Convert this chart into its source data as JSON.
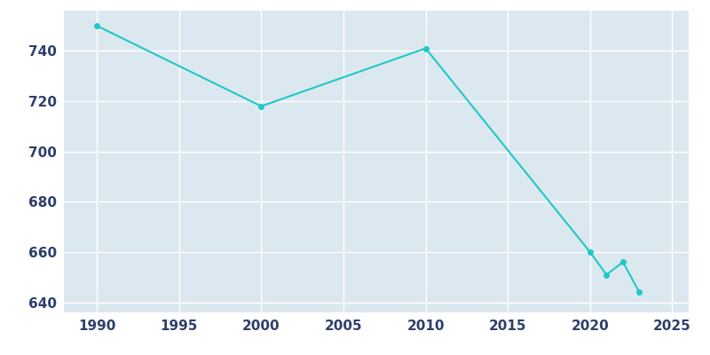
{
  "years": [
    1990,
    2000,
    2010,
    2020,
    2021,
    2022,
    2023
  ],
  "population": [
    750,
    718,
    741,
    660,
    651,
    656,
    644
  ],
  "line_color": "#20c8c8",
  "marker_color": "#20c8c8",
  "plot_facecolor": "#dce8f0",
  "figure_facecolor": "#ffffff",
  "grid_color": "#ffffff",
  "tick_color": "#2e3f6e",
  "xlim": [
    1988,
    2026
  ],
  "ylim": [
    636,
    756
  ],
  "xticks": [
    1990,
    1995,
    2000,
    2005,
    2010,
    2015,
    2020,
    2025
  ],
  "yticks": [
    640,
    660,
    680,
    700,
    720,
    740
  ]
}
